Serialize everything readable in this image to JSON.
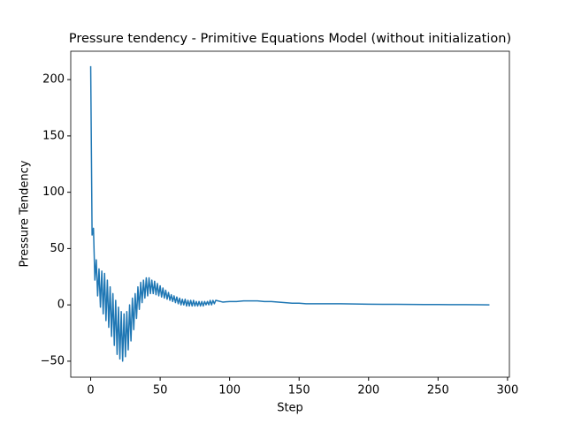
{
  "chart_data": {
    "type": "line",
    "title": "Pressure tendency - Primitive Equations Model (without initialization)",
    "x_label": "Step",
    "y_label": "Pressure Tendency",
    "series": [
      {
        "color": "#1f77b4",
        "x": [
          0,
          1,
          2,
          3,
          4,
          5,
          6,
          7,
          8,
          9,
          10,
          11,
          12,
          13,
          14,
          15,
          16,
          17,
          18,
          19,
          20,
          21,
          22,
          23,
          24,
          25,
          26,
          27,
          28,
          29,
          30,
          31,
          32,
          33,
          34,
          35,
          36,
          37,
          38,
          39,
          40,
          41,
          42,
          43,
          44,
          45,
          46,
          47,
          48,
          49,
          50,
          51,
          52,
          53,
          54,
          55,
          56,
          57,
          58,
          59,
          60,
          61,
          62,
          63,
          64,
          65,
          66,
          67,
          68,
          69,
          70,
          71,
          72,
          73,
          74,
          75,
          76,
          77,
          78,
          79,
          80,
          81,
          82,
          83,
          84,
          85,
          86,
          87,
          88,
          89,
          90,
          95,
          100,
          105,
          110,
          115,
          120,
          125,
          130,
          135,
          140,
          145,
          150,
          155,
          160,
          170,
          180,
          190,
          200,
          210,
          220,
          230,
          240,
          250,
          260,
          270,
          280,
          287
        ],
        "values": [
          212,
          62,
          68,
          22,
          40,
          8,
          32,
          -2,
          30,
          -8,
          28,
          -14,
          22,
          -20,
          16,
          -28,
          10,
          -36,
          4,
          -44,
          -2,
          -48,
          -6,
          -50,
          -8,
          -46,
          -6,
          -40,
          0,
          -32,
          6,
          -22,
          10,
          -12,
          16,
          -4,
          20,
          2,
          22,
          6,
          24,
          8,
          24,
          10,
          22,
          10,
          21,
          9,
          19,
          8,
          17,
          7,
          15,
          6,
          13,
          5,
          11,
          4,
          9,
          3,
          8,
          2,
          7,
          1,
          6,
          0,
          5,
          0,
          5,
          -1,
          4,
          -1,
          4,
          -1,
          4,
          -1,
          3,
          -1,
          3,
          -1,
          3,
          -1,
          3,
          0,
          3,
          0,
          4,
          0,
          4,
          1,
          4,
          2.5,
          3,
          3,
          3.5,
          3.5,
          3.5,
          3,
          3,
          2.5,
          2,
          1.5,
          1.5,
          1,
          1,
          1,
          1,
          0.8,
          0.6,
          0.5,
          0.5,
          0.4,
          0.3,
          0.3,
          0.2,
          0.2,
          0.1,
          0
        ]
      }
    ],
    "xlim": [
      -14.35,
      301.35
    ],
    "ylim": [
      -64.2,
      225.2
    ],
    "xticks": [
      0,
      50,
      100,
      150,
      200,
      250,
      300
    ],
    "yticks": [
      {
        "value": -50,
        "label": "−50"
      },
      0,
      50,
      100,
      150,
      200
    ]
  }
}
